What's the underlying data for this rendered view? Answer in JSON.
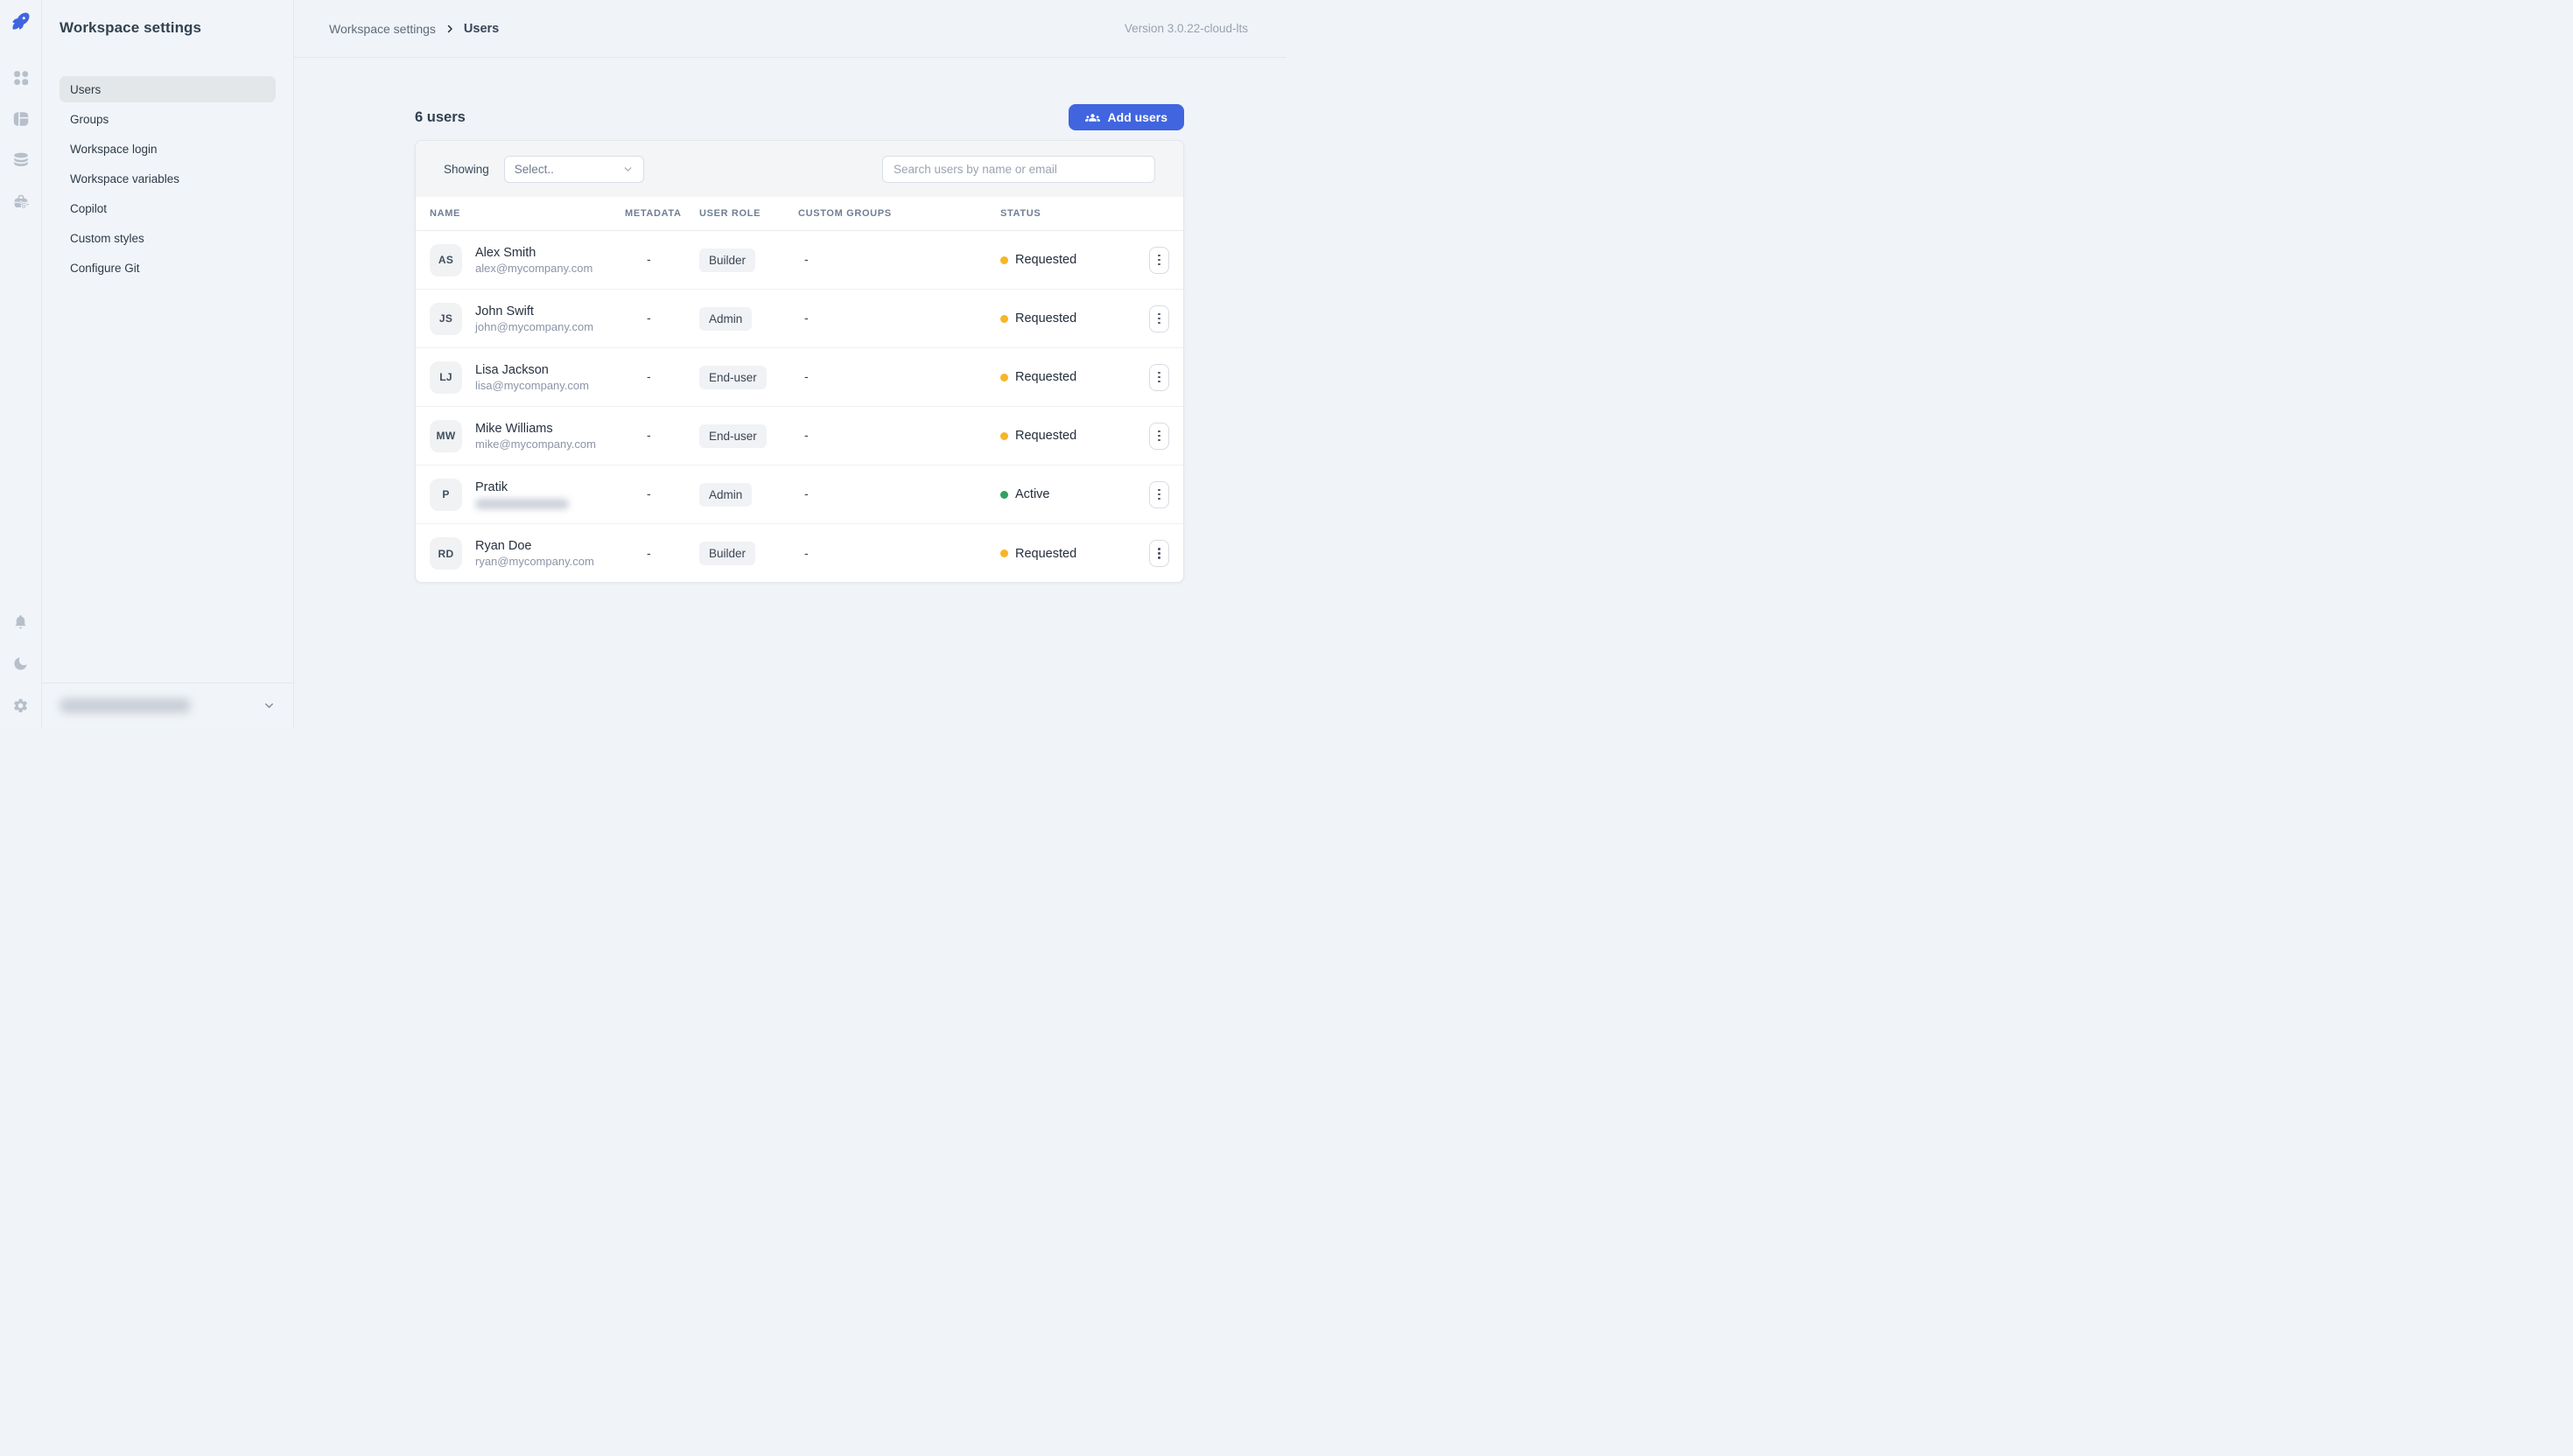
{
  "header": {
    "breadcrumb_root": "Workspace settings",
    "breadcrumb_current": "Users",
    "version": "Version 3.0.22-cloud-lts"
  },
  "rail": {
    "icons_top": [
      "rocket-logo",
      "apps",
      "app-builder",
      "database",
      "workspace-constants"
    ],
    "icons_bottom": [
      "notifications",
      "dark-mode",
      "settings"
    ]
  },
  "sidebar": {
    "title": "Workspace settings",
    "items": [
      {
        "label": "Users",
        "active": true
      },
      {
        "label": "Groups",
        "active": false
      },
      {
        "label": "Workspace login",
        "active": false
      },
      {
        "label": "Workspace variables",
        "active": false
      },
      {
        "label": "Copilot",
        "active": false
      },
      {
        "label": "Custom styles",
        "active": false
      },
      {
        "label": "Configure Git",
        "active": false
      }
    ],
    "workspace_switcher": {
      "redacted": true
    }
  },
  "page": {
    "users_count_label": "6 users",
    "add_users_label": "Add users",
    "filter": {
      "showing_label": "Showing",
      "select_value": "Select..",
      "search_placeholder": "Search users by name or email"
    },
    "table": {
      "columns": [
        "NAME",
        "METADATA",
        "USER ROLE",
        "CUSTOM GROUPS",
        "STATUS"
      ],
      "rows": [
        {
          "initials": "AS",
          "name": "Alex Smith",
          "email": "alex@mycompany.com",
          "email_redacted": false,
          "metadata": "-",
          "role": "Builder",
          "custom_groups": "-",
          "status": "Requested",
          "status_color": "#F7B527"
        },
        {
          "initials": "JS",
          "name": "John Swift",
          "email": "john@mycompany.com",
          "email_redacted": false,
          "metadata": "-",
          "role": "Admin",
          "custom_groups": "-",
          "status": "Requested",
          "status_color": "#F7B527"
        },
        {
          "initials": "LJ",
          "name": "Lisa Jackson",
          "email": "lisa@mycompany.com",
          "email_redacted": false,
          "metadata": "-",
          "role": "End-user",
          "custom_groups": "-",
          "status": "Requested",
          "status_color": "#F7B527"
        },
        {
          "initials": "MW",
          "name": "Mike Williams",
          "email": "mike@mycompany.com",
          "email_redacted": false,
          "metadata": "-",
          "role": "End-user",
          "custom_groups": "-",
          "status": "Requested",
          "status_color": "#F7B527"
        },
        {
          "initials": "P",
          "name": "Pratik",
          "email": "",
          "email_redacted": true,
          "metadata": "-",
          "role": "Admin",
          "custom_groups": "-",
          "status": "Active",
          "status_color": "#2FA263"
        },
        {
          "initials": "RD",
          "name": "Ryan Doe",
          "email": "ryan@mycompany.com",
          "email_redacted": false,
          "metadata": "-",
          "role": "Builder",
          "custom_groups": "-",
          "status": "Requested",
          "status_color": "#F7B527"
        }
      ]
    }
  },
  "colors": {
    "accent": "#4065DF",
    "status_requested": "#F7B527",
    "status_active": "#2FA263"
  }
}
